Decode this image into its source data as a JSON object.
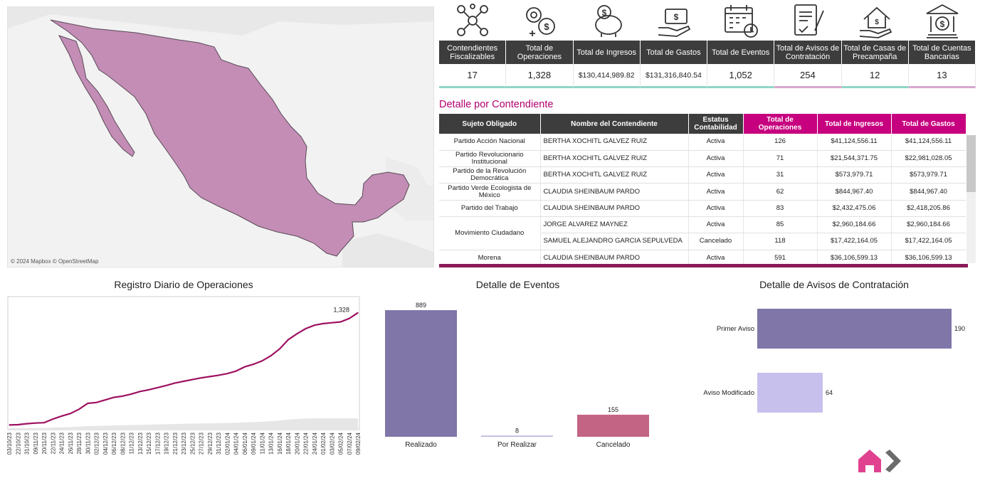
{
  "map": {
    "attribution": "© 2024 Mapbox  © OpenStreetMap",
    "fill": "#c38db6"
  },
  "kpi": [
    {
      "icon": "network-people-icon",
      "label": "Contendientes Fiscalizables",
      "value": "17",
      "accent": "teal"
    },
    {
      "icon": "gears-dollar-icon",
      "label": "Total de Operaciones",
      "value": "1,328",
      "accent": "teal"
    },
    {
      "icon": "piggy-bank-icon",
      "label": "Total de Ingresos",
      "value": "$130,414,989.82",
      "accent": "teal"
    },
    {
      "icon": "hand-money-icon",
      "label": "Total de Gastos",
      "value": "$131,316,840.54",
      "accent": "teal"
    },
    {
      "icon": "calendar-clock-icon",
      "label": "Total de Eventos",
      "value": "1,052",
      "accent": "teal"
    },
    {
      "icon": "contract-icon",
      "label": "Total de Avisos de Contratación",
      "value": "254",
      "accent": "pink"
    },
    {
      "icon": "house-hand-icon",
      "label": "Total de Casas de Precampaña",
      "value": "12",
      "accent": "teal"
    },
    {
      "icon": "bank-icon",
      "label": "Total de Cuentas Bancarias",
      "value": "13",
      "accent": "pink"
    }
  ],
  "detail": {
    "title": "Detalle por Contendiente",
    "headers": [
      "Sujeto Obligado",
      "Nombre del Contendiente",
      "Estatus Contabilidad",
      "Total de Operaciones",
      "Total de Ingresos",
      "Total de Gastos"
    ],
    "rows": [
      [
        "Partido Acción Nacional",
        "BERTHA XOCHITL GALVEZ RUIZ",
        "Activa",
        "126",
        "$41,124,556.11",
        "$41,124,556.11"
      ],
      [
        "Partido Revolucionario Institucional",
        "BERTHA XOCHITL GALVEZ RUIZ",
        "Activa",
        "71",
        "$21,544,371.75",
        "$22,981,028.05"
      ],
      [
        "Partido de la Revolución Democrática",
        "BERTHA XOCHITL GALVEZ RUIZ",
        "Activa",
        "31",
        "$573,979.71",
        "$573,979.71"
      ],
      [
        "Partido Verde Ecologista de México",
        "CLAUDIA SHEINBAUM PARDO",
        "Activa",
        "62",
        "$844,967.40",
        "$844,967.40"
      ],
      [
        "Partido del Trabajo",
        "CLAUDIA SHEINBAUM PARDO",
        "Activa",
        "83",
        "$2,432,475.06",
        "$2,418,205.86"
      ],
      [
        "Movimiento Ciudadano",
        "JORGE ALVAREZ MAYNEZ",
        "Activa",
        "85",
        "$2,960,184.66",
        "$2,960,184.66"
      ],
      [
        "",
        "SAMUEL ALEJANDRO GARCIA SEPULVEDA",
        "Cancelado",
        "118",
        "$17,422,164.05",
        "$17,422,164.05"
      ],
      [
        "Morena",
        "CLAUDIA SHEINBAUM PARDO",
        "Activa",
        "591",
        "$36,106,599.13",
        "$36,106,599.13"
      ]
    ]
  },
  "chart_data": [
    {
      "type": "line",
      "title": "Registro Diario de Operaciones",
      "x": [
        "03/10/23",
        "22/10/23",
        "31/10/23",
        "09/11/23",
        "20/11/23",
        "22/11/23",
        "24/11/23",
        "26/11/23",
        "28/11/23",
        "30/11/23",
        "02/12/23",
        "04/12/23",
        "06/12/23",
        "08/12/23",
        "11/12/23",
        "13/12/23",
        "15/12/23",
        "17/12/23",
        "19/12/23",
        "21/12/23",
        "23/12/23",
        "25/12/23",
        "27/12/23",
        "29/12/23",
        "31/12/23",
        "02/01/24",
        "04/01/24",
        "06/01/24",
        "09/01/24",
        "11/01/24",
        "13/01/24",
        "16/01/24",
        "18/01/24",
        "20/01/24",
        "22/01/24",
        "24/01/24",
        "01/02/24",
        "03/02/24",
        "05/02/24",
        "07/02/24",
        "09/02/24"
      ],
      "values": [
        5,
        8,
        20,
        28,
        32,
        75,
        110,
        140,
        190,
        260,
        270,
        300,
        330,
        345,
        370,
        400,
        420,
        445,
        470,
        500,
        520,
        540,
        560,
        575,
        590,
        610,
        640,
        690,
        720,
        760,
        820,
        900,
        1010,
        1080,
        1140,
        1180,
        1200,
        1210,
        1220,
        1260,
        1328
      ],
      "annotation": "1,328",
      "line_color": "#9e1161",
      "ylim": [
        0,
        1400
      ]
    },
    {
      "type": "bar",
      "title": "Detalle de Eventos",
      "categories": [
        "Realizado",
        "Por Realizar",
        "Cancelado"
      ],
      "values": [
        889,
        8,
        155
      ],
      "colors": [
        "#8076a8",
        "#b9b1db",
        "#c46485"
      ],
      "ylim": [
        0,
        889
      ]
    },
    {
      "type": "bar",
      "orientation": "horizontal",
      "title": "Detalle de Avisos de Contratación",
      "categories": [
        "Primer Aviso",
        "Aviso Modificado"
      ],
      "values": [
        190,
        64
      ],
      "colors": [
        "#8076a8",
        "#c7c0ed"
      ],
      "xlim": [
        0,
        190
      ]
    }
  ],
  "nav": {
    "home_icon": "home-icon",
    "next_icon": "chevron-right-icon",
    "home_color": "#e0428f",
    "next_color": "#6b6b6b"
  }
}
